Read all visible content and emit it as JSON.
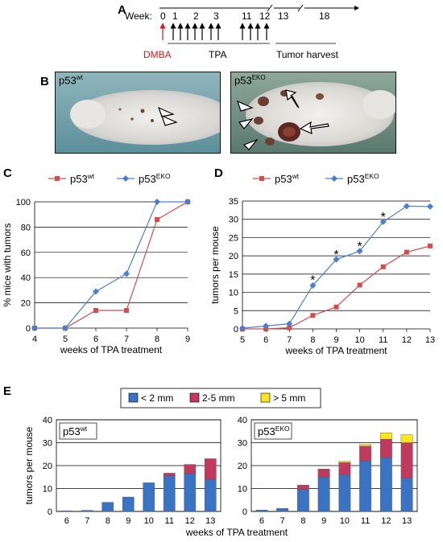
{
  "panel_a": {
    "letter": "A",
    "week_label": "Week:",
    "weeks": [
      "0",
      "1",
      "2",
      "3",
      "11",
      "12",
      "13",
      "18"
    ],
    "dmba_label": "DMBA",
    "tpa_label": "TPA",
    "harvest_label": "Tumor harvest",
    "colors": {
      "dmba": "#d7191c"
    }
  },
  "panel_b": {
    "letter": "B",
    "left": {
      "label": "p53",
      "sup": "wt"
    },
    "right": {
      "label": "p53",
      "sup": "EKO"
    }
  },
  "chart_data": [
    {
      "panel": "C",
      "type": "line",
      "ylabel": "% mice with tumors",
      "xlabel": "weeks of TPA treatment",
      "x": [
        4,
        5,
        6,
        7,
        8,
        9
      ],
      "ylim": [
        0,
        100
      ],
      "yticks": [
        0,
        20,
        40,
        60,
        80,
        100
      ],
      "legend": [
        {
          "label": "p53",
          "sup": "wt",
          "color": "#d94b4b",
          "marker": "square"
        },
        {
          "label": "p53",
          "sup": "EKO",
          "color": "#4a7fd0",
          "marker": "diamond"
        }
      ],
      "series": [
        {
          "name": "p53wt",
          "color": "#d94b4b",
          "marker": "square",
          "values": [
            0,
            0,
            14,
            14,
            86,
            100
          ]
        },
        {
          "name": "p53EKO",
          "color": "#4a7fd0",
          "marker": "diamond",
          "values": [
            0,
            0,
            29,
            43,
            100,
            100
          ]
        }
      ]
    },
    {
      "panel": "D",
      "type": "line",
      "ylabel": "tumors per mouse",
      "xlabel": "weeks of TPA treatment",
      "x": [
        5,
        6,
        7,
        8,
        9,
        10,
        11,
        12,
        13
      ],
      "ylim": [
        0,
        35
      ],
      "yticks": [
        0,
        5,
        10,
        15,
        20,
        25,
        30,
        35
      ],
      "legend": [
        {
          "label": "p53",
          "sup": "wt",
          "color": "#d94b4b",
          "marker": "square"
        },
        {
          "label": "p53",
          "sup": "EKO",
          "color": "#4a7fd0",
          "marker": "diamond"
        }
      ],
      "series": [
        {
          "name": "p53wt",
          "color": "#d94b4b",
          "marker": "square",
          "values": [
            0,
            0,
            0.3,
            3.7,
            6,
            12,
            17,
            21,
            22.7
          ]
        },
        {
          "name": "p53EKO",
          "color": "#4a7fd0",
          "marker": "diamond",
          "values": [
            0.2,
            0.8,
            1.4,
            11.9,
            19,
            21.3,
            29.3,
            33.6,
            33.5
          ]
        }
      ],
      "annotations": [
        {
          "x": 8,
          "y": 13.5,
          "text": "*"
        },
        {
          "x": 9,
          "y": 20.5,
          "text": "*"
        },
        {
          "x": 10,
          "y": 22.8,
          "text": "*"
        },
        {
          "x": 11,
          "y": 30.8,
          "text": "*"
        }
      ]
    },
    {
      "panel": "E-left",
      "type": "bar",
      "stacked": true,
      "ylabel": "tumors per mouse",
      "xlabel": "weeks of TPA treatment",
      "label": "p53",
      "label_sup": "wt",
      "categories": [
        "6",
        "7",
        "8",
        "9",
        "10",
        "11",
        "12",
        "13"
      ],
      "ylim": [
        0,
        40
      ],
      "yticks": [
        0,
        10,
        20,
        30,
        40
      ],
      "series": [
        {
          "name": "< 2 mm",
          "color": "#3a72c4",
          "values": [
            0.3,
            0.5,
            4,
            6.3,
            12.5,
            15.5,
            16.5,
            14
          ]
        },
        {
          "name": "2-5 mm",
          "color": "#c0395f",
          "values": [
            0,
            0,
            0,
            0,
            0,
            1.2,
            4,
            9
          ]
        },
        {
          "name": "> 5 mm",
          "color": "#ffe51f",
          "values": [
            0,
            0,
            0,
            0,
            0,
            0,
            0,
            0
          ]
        }
      ]
    },
    {
      "panel": "E-right",
      "type": "bar",
      "stacked": true,
      "categories": [
        "6",
        "7",
        "8",
        "9",
        "10",
        "11",
        "12",
        "13"
      ],
      "label": "p53",
      "label_sup": "EKO",
      "ylim": [
        0,
        40
      ],
      "yticks": [
        0,
        10,
        20,
        30,
        40
      ],
      "series": [
        {
          "name": "< 2 mm",
          "color": "#3a72c4",
          "values": [
            0.6,
            1.3,
            9.5,
            15,
            16,
            22,
            23.5,
            14.5
          ]
        },
        {
          "name": "2-5 mm",
          "color": "#c0395f",
          "values": [
            0,
            0,
            2,
            3.5,
            5.3,
            6.5,
            8,
            15.5
          ]
        },
        {
          "name": "> 5 mm",
          "color": "#ffe51f",
          "values": [
            0,
            0,
            0,
            0,
            0.6,
            0.7,
            2.8,
            3.5
          ]
        }
      ]
    }
  ],
  "panel_e": {
    "letter": "E",
    "legend": [
      {
        "label": "< 2 mm",
        "color": "#3a72c4"
      },
      {
        "label": "2-5 mm",
        "color": "#c0395f"
      },
      {
        "label": "> 5 mm",
        "color": "#ffe51f"
      }
    ]
  },
  "panel_c_letter": "C",
  "panel_d_letter": "D"
}
